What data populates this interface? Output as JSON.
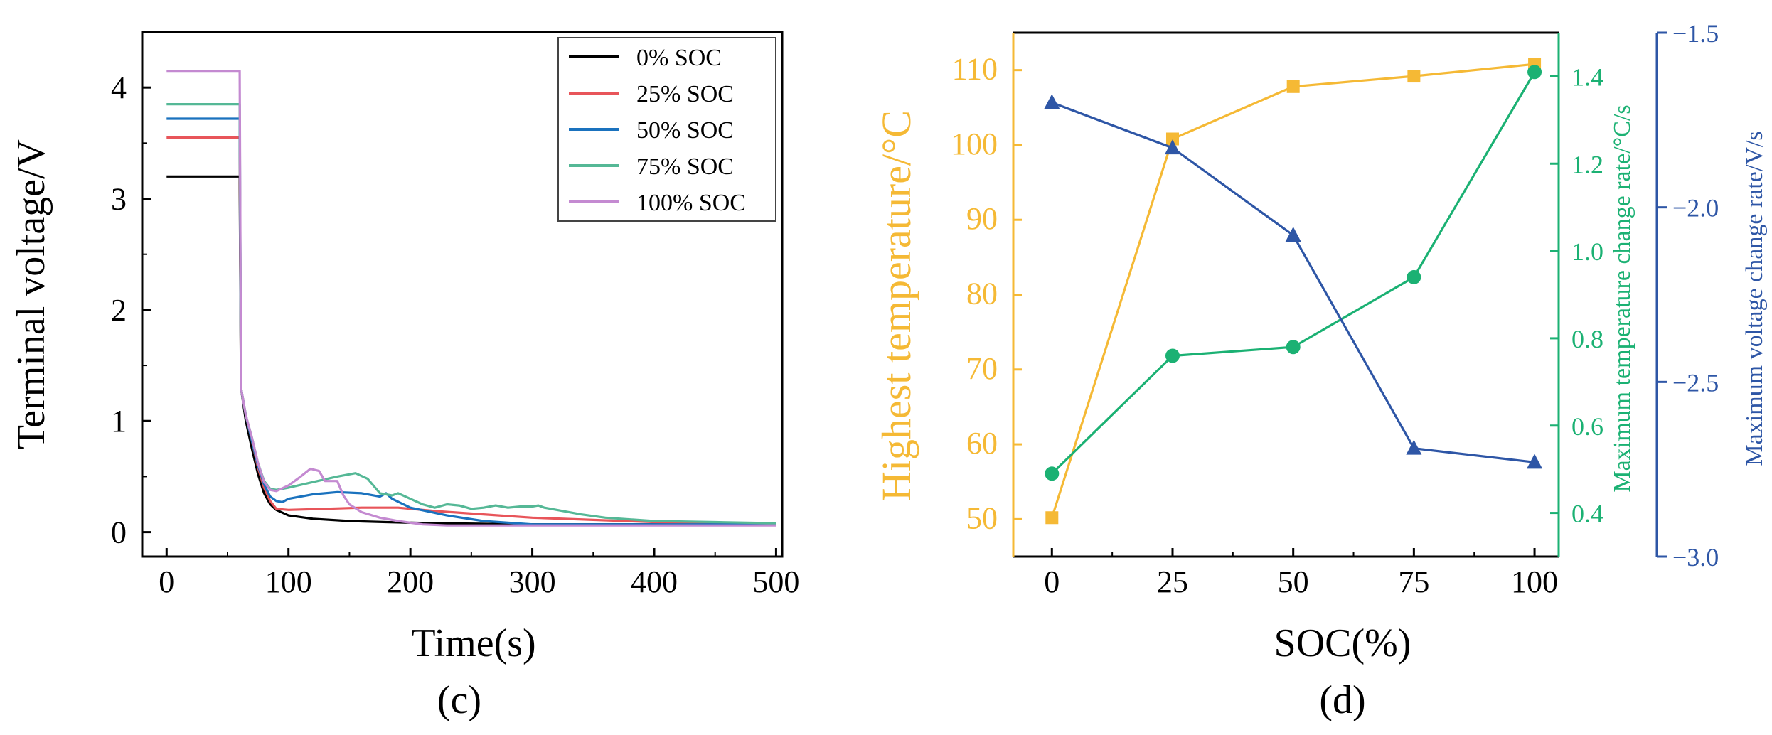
{
  "chart_data": [
    {
      "type": "line",
      "panel_label": "(c)",
      "xlabel": "Time(s)",
      "ylabel": "Terminal voltage/V",
      "xlim": [
        -20,
        505
      ],
      "ylim": [
        -0.22,
        4.5
      ],
      "xticks": [
        0,
        100,
        200,
        300,
        400,
        500
      ],
      "yticks": [
        0,
        1,
        2,
        3,
        4
      ],
      "xtick_labels": [
        "0",
        "100",
        "200",
        "300",
        "400",
        "500"
      ],
      "ytick_labels": [
        "0",
        "1",
        "2",
        "3",
        "4"
      ],
      "legend_position": "top-right",
      "series": [
        {
          "name": "0% SOC",
          "color": "#000000",
          "x": [
            0,
            60,
            61,
            65,
            70,
            75,
            80,
            85,
            90,
            100,
            120,
            150,
            180,
            220,
            300,
            400,
            500
          ],
          "y": [
            3.2,
            3.2,
            1.3,
            1.0,
            0.75,
            0.52,
            0.35,
            0.25,
            0.2,
            0.15,
            0.12,
            0.1,
            0.09,
            0.08,
            0.07,
            0.07,
            0.07
          ]
        },
        {
          "name": "25% SOC",
          "color": "#e8555a",
          "x": [
            0,
            60,
            61,
            65,
            70,
            75,
            80,
            85,
            90,
            100,
            130,
            160,
            190,
            220,
            260,
            300,
            350,
            400,
            450,
            500
          ],
          "y": [
            3.55,
            3.55,
            1.3,
            1.05,
            0.82,
            0.58,
            0.4,
            0.28,
            0.21,
            0.2,
            0.21,
            0.22,
            0.22,
            0.19,
            0.16,
            0.13,
            0.11,
            0.09,
            0.08,
            0.07
          ]
        },
        {
          "name": "50% SOC",
          "color": "#1a72be",
          "x": [
            0,
            60,
            61,
            65,
            70,
            75,
            80,
            85,
            90,
            95,
            100,
            120,
            140,
            160,
            175,
            180,
            185,
            200,
            230,
            260,
            300,
            400,
            500
          ],
          "y": [
            3.72,
            3.72,
            1.3,
            1.05,
            0.82,
            0.6,
            0.43,
            0.32,
            0.28,
            0.27,
            0.3,
            0.34,
            0.36,
            0.35,
            0.32,
            0.35,
            0.3,
            0.22,
            0.15,
            0.1,
            0.07,
            0.07,
            0.07
          ]
        },
        {
          "name": "75% SOC",
          "color": "#55b896",
          "x": [
            0,
            60,
            61,
            65,
            70,
            75,
            80,
            85,
            90,
            100,
            120,
            140,
            155,
            165,
            175,
            185,
            190,
            200,
            210,
            220,
            230,
            240,
            250,
            260,
            270,
            280,
            290,
            300,
            305,
            310,
            320,
            340,
            360,
            400,
            450,
            500
          ],
          "y": [
            3.85,
            3.85,
            1.3,
            1.05,
            0.85,
            0.62,
            0.46,
            0.39,
            0.38,
            0.4,
            0.45,
            0.5,
            0.53,
            0.48,
            0.35,
            0.33,
            0.35,
            0.3,
            0.25,
            0.22,
            0.25,
            0.24,
            0.21,
            0.22,
            0.24,
            0.22,
            0.23,
            0.23,
            0.24,
            0.22,
            0.2,
            0.16,
            0.13,
            0.1,
            0.09,
            0.08
          ]
        },
        {
          "name": "100% SOC",
          "color": "#c48ad1",
          "x": [
            0,
            60,
            61,
            65,
            70,
            75,
            80,
            85,
            90,
            100,
            110,
            118,
            125,
            130,
            135,
            140,
            145,
            150,
            160,
            175,
            190,
            210,
            230,
            300,
            400,
            500
          ],
          "y": [
            4.15,
            4.15,
            1.3,
            1.05,
            0.85,
            0.62,
            0.45,
            0.38,
            0.37,
            0.42,
            0.5,
            0.57,
            0.55,
            0.46,
            0.46,
            0.46,
            0.33,
            0.25,
            0.18,
            0.13,
            0.1,
            0.07,
            0.06,
            0.06,
            0.06,
            0.06
          ]
        }
      ]
    },
    {
      "type": "line",
      "panel_label": "(d)",
      "xlabel": "SOC(%)",
      "xlim": [
        -8,
        105
      ],
      "xticks": [
        0,
        25,
        50,
        75,
        100
      ],
      "xtick_labels": [
        "0",
        "25",
        "50",
        "75",
        "100"
      ],
      "categories": [
        0,
        25,
        50,
        75,
        100
      ],
      "axes": {
        "left": {
          "label": "Highest temperature/°C",
          "color": "#f5b935",
          "ylim": [
            45,
            115
          ],
          "ticks": [
            50,
            60,
            70,
            80,
            90,
            100,
            110
          ],
          "tick_labels": [
            "50",
            "60",
            "70",
            "80",
            "90",
            "100",
            "110"
          ]
        },
        "right1": {
          "label": "Maximum temperature change rate/°C/s",
          "color": "#1bb173",
          "ylim": [
            0.3,
            1.5
          ],
          "ticks": [
            0.4,
            0.6,
            0.8,
            1.0,
            1.2,
            1.4
          ],
          "tick_labels": [
            "0.4",
            "0.6",
            "0.8",
            "1.0",
            "1.2",
            "1.4"
          ]
        },
        "right2": {
          "label": "Maximum voltage change rate/V/s",
          "color": "#2e56a6",
          "ylim": [
            -3.0,
            -1.5
          ],
          "ticks": [
            -3.0,
            -2.5,
            -2.0,
            -1.5
          ],
          "tick_labels": [
            "−3.0",
            "−2.5",
            "−2.0",
            "−1.5"
          ]
        }
      },
      "series": [
        {
          "name": "Highest temperature",
          "axis": "left",
          "marker": "square",
          "color": "#f5b935",
          "values": [
            50.2,
            100.8,
            107.8,
            109.2,
            110.8
          ]
        },
        {
          "name": "Maximum temperature change rate",
          "axis": "right1",
          "marker": "circle",
          "color": "#1bb173",
          "values": [
            0.49,
            0.76,
            0.78,
            0.94,
            1.41
          ]
        },
        {
          "name": "Maximum voltage change rate",
          "axis": "right2",
          "marker": "triangle",
          "color": "#2e56a6",
          "values": [
            -1.7,
            -1.83,
            -2.08,
            -2.69,
            -2.73
          ]
        }
      ]
    }
  ]
}
